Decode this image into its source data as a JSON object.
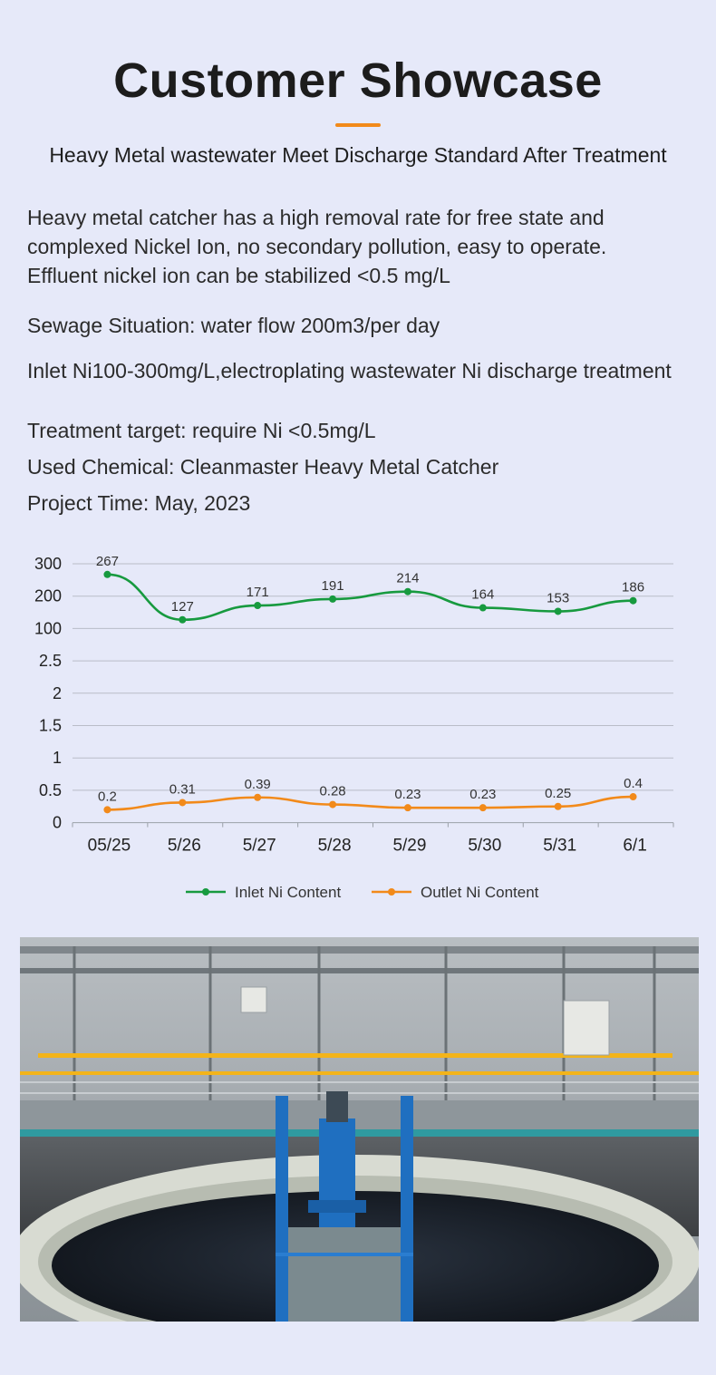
{
  "header": {
    "title": "Customer Showcase",
    "subtitle": "Heavy Metal wastewater Meet Discharge Standard After Treatment"
  },
  "description": "Heavy metal catcher has a high removal rate for free state and complexed Nickel Ion, no secondary pollution, easy to operate. Effluent nickel ion can be stabilized <0.5 mg/L",
  "details": {
    "sewage": "Sewage Situation: water flow 200m3/per day",
    "inlet": "Inlet Ni100-300mg/L,electroplating wastewater Ni discharge treatment",
    "target": "Treatment target: require Ni <0.5mg/L",
    "chemical": "Used Chemical: Cleanmaster Heavy Metal Catcher",
    "time": "Project Time: May, 2023"
  },
  "chart_data": {
    "type": "line",
    "categories": [
      "05/25",
      "5/26",
      "5/27",
      "5/28",
      "5/29",
      "5/30",
      "5/31",
      "6/1"
    ],
    "y_tick_labels": [
      "0",
      "0.5",
      "1",
      "1.5",
      "2",
      "2.5",
      "100",
      "200",
      "300"
    ],
    "scale_note": "broken y-axis: 0–2.5 linear lower band, 100–300 upper band",
    "series": [
      {
        "name": "Inlet Ni Content",
        "color": "#179a3f",
        "values": [
          267,
          127,
          171,
          191,
          214,
          164,
          153,
          186
        ],
        "labels": [
          "267",
          "127",
          "171",
          "191",
          "214",
          "164",
          "153",
          "186"
        ]
      },
      {
        "name": "Outlet Ni Content",
        "color": "#f28a1a",
        "values": [
          0.2,
          0.31,
          0.39,
          0.28,
          0.23,
          0.23,
          0.25,
          0.4
        ],
        "labels": [
          "0.2",
          "0.31",
          "0.39",
          "0.28",
          "0.23",
          "0.23",
          "0.25",
          "0.4"
        ]
      }
    ],
    "legend_position": "bottom-center",
    "grid": true
  },
  "photo": {
    "subject": "wastewater treatment clarifier tank with blue agitator and walkway",
    "colors": {
      "steel": "#1f6fc0",
      "water": "#1a1f28",
      "rim": "#d9dcd3",
      "railing": "#f3b41a"
    }
  }
}
